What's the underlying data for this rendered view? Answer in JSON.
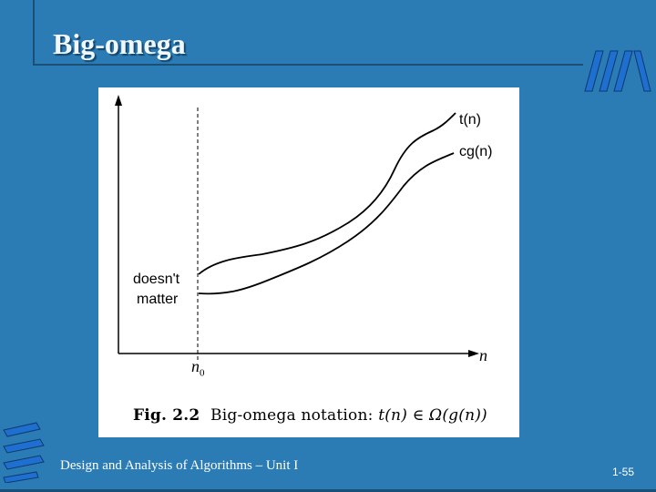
{
  "slide": {
    "title": "Big-omega",
    "footer_course": "Design and Analysis of Algorithms – Unit I",
    "page_number": "1-55",
    "background_color": "#2b7cb5"
  },
  "figure": {
    "curve_upper_label": "t(n)",
    "curve_lower_label": "cg(n)",
    "region_label_line1": "doesn't",
    "region_label_line2": "matter",
    "threshold_label": "n",
    "threshold_subscript": "0",
    "x_axis_label": "n",
    "caption_prefix": "Fig. 2.2",
    "caption_text": "Big-omega notation:",
    "caption_math": "t(n) ∈ Ω(g(n))"
  }
}
